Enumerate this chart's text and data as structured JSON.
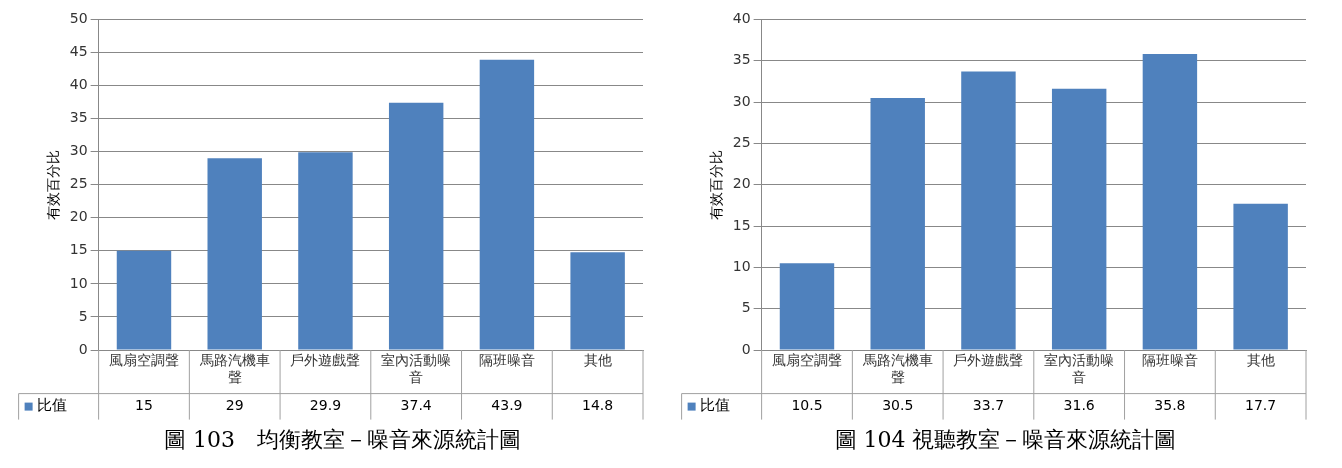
{
  "chart_data": [
    {
      "type": "bar",
      "title": "圖 103　均衡教室－噪音來源統計圖",
      "ylabel": "有效百分比",
      "categories": [
        "風扇空調聲",
        "馬路汽機車聲",
        "戶外遊戲聲",
        "室內活動噪音",
        "隔班噪音",
        "其他"
      ],
      "series": [
        {
          "name": "比值",
          "color": "#4f81bd",
          "values": [
            15,
            29,
            29.9,
            37.4,
            43.9,
            14.8
          ]
        }
      ],
      "ylim": [
        0,
        50
      ],
      "yticks": [
        0,
        5,
        10,
        15,
        20,
        25,
        30,
        35,
        40,
        45,
        50
      ],
      "grid": "y",
      "legend": "bottom",
      "data_labels": true
    },
    {
      "type": "bar",
      "title": "圖 104 視聽教室－噪音來源統計圖",
      "ylabel": "有效百分比",
      "categories": [
        "風扇空調聲",
        "馬路汽機車聲",
        "戶外遊戲聲",
        "室內活動噪音",
        "隔班噪音",
        "其他"
      ],
      "series": [
        {
          "name": "比值",
          "color": "#4f81bd",
          "values": [
            10.5,
            30.5,
            33.7,
            31.6,
            35.8,
            17.7
          ]
        }
      ],
      "ylim": [
        0,
        40
      ],
      "yticks": [
        0,
        5,
        10,
        15,
        20,
        25,
        30,
        35,
        40
      ],
      "grid": "y",
      "legend": "bottom",
      "data_labels": true
    }
  ]
}
